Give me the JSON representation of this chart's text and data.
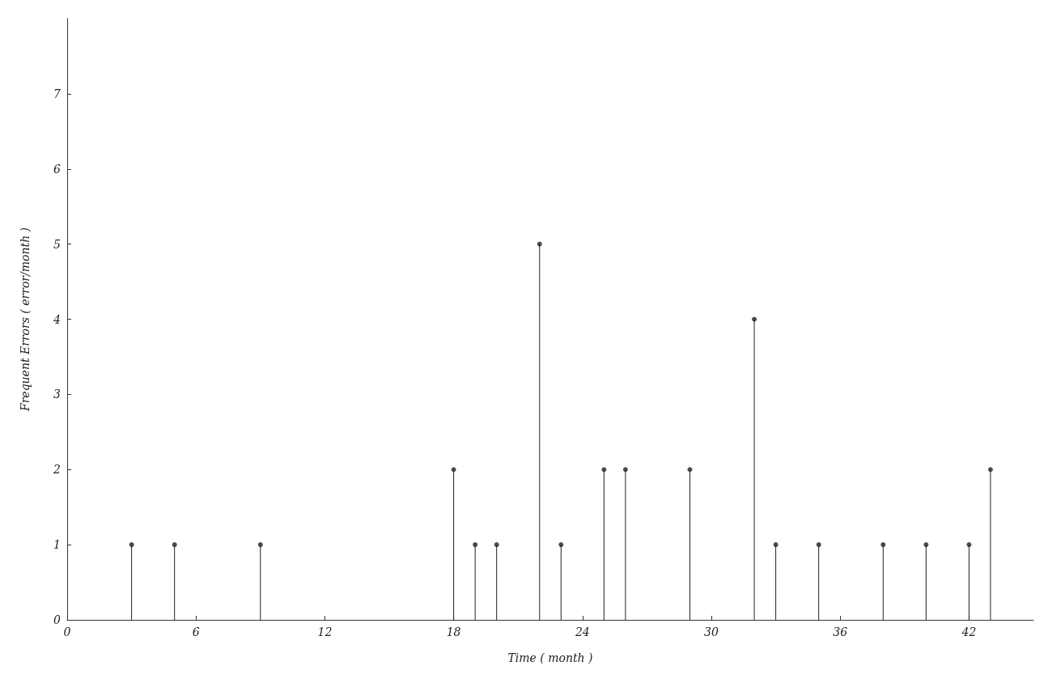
{
  "chart_data": {
    "type": "lollipop",
    "xlabel": "Time ( month )",
    "ylabel": "Frequent Errors ( error/month )",
    "x": [
      3,
      5,
      9,
      18,
      19,
      20,
      22,
      23,
      25,
      26,
      29,
      32,
      33,
      35,
      38,
      40,
      42,
      43
    ],
    "values": [
      1,
      1,
      1,
      2,
      1,
      1,
      5,
      1,
      2,
      2,
      2,
      4,
      1,
      1,
      1,
      1,
      1,
      2
    ],
    "color": "#222222",
    "marker": "circle",
    "grid": false,
    "xlim": [
      0,
      45
    ],
    "xticks": [
      0,
      6,
      12,
      18,
      24,
      30,
      36,
      42
    ],
    "ylim": [
      0,
      8
    ],
    "yticks": [
      0,
      1,
      2,
      3,
      4,
      5,
      6,
      7
    ]
  }
}
